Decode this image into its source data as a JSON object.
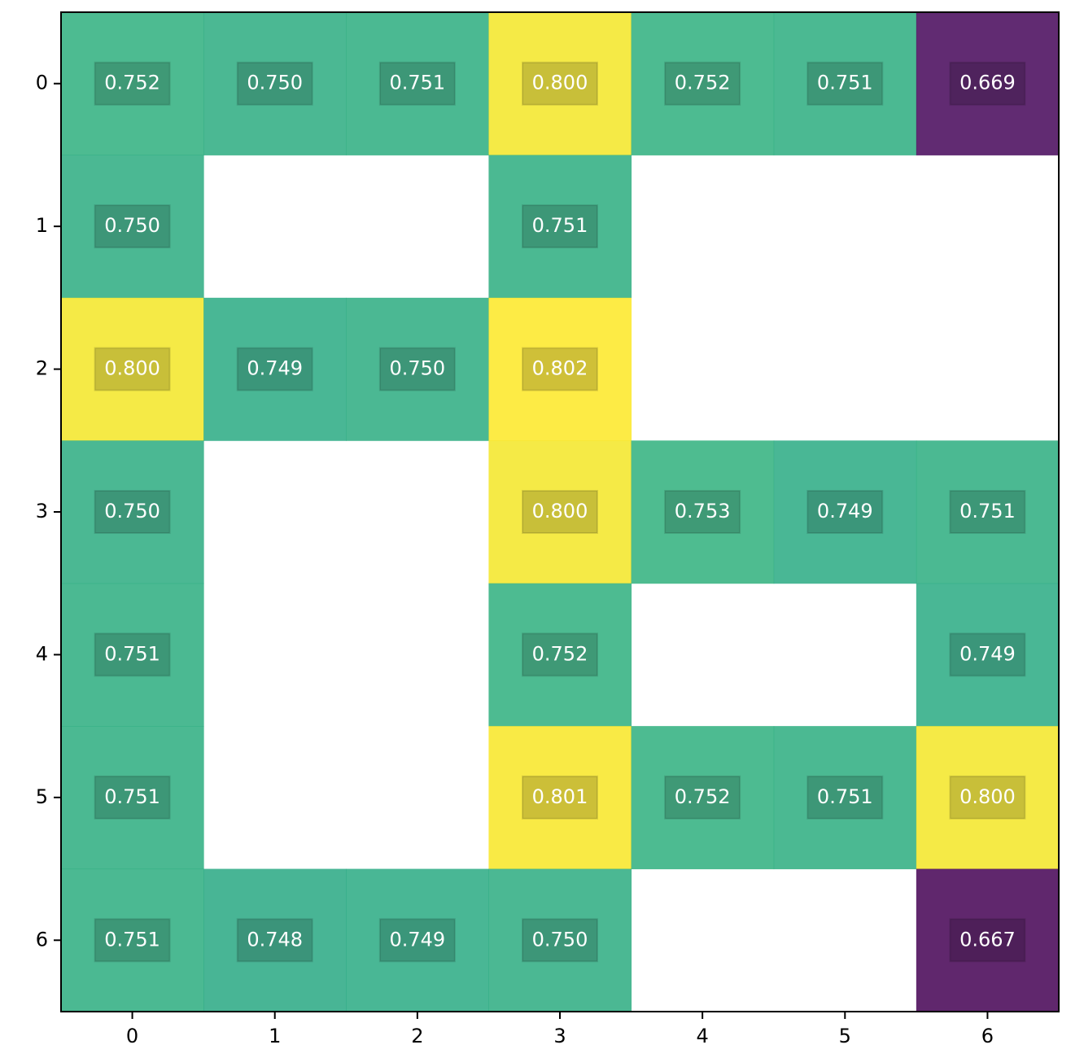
{
  "chart_data": {
    "type": "heatmap",
    "x": [
      0,
      1,
      2,
      3,
      4,
      5,
      6
    ],
    "y": [
      0,
      1,
      2,
      3,
      4,
      5,
      6
    ],
    "xlim": [
      -0.5,
      6.5
    ],
    "ylim": [
      6.5,
      -0.5
    ],
    "xticks": [
      0,
      1,
      2,
      3,
      4,
      5,
      6
    ],
    "yticks": [
      0,
      1,
      2,
      3,
      4,
      5,
      6
    ],
    "colormap": "viridis",
    "values": [
      [
        0.752,
        0.75,
        0.751,
        0.8,
        0.752,
        0.751,
        0.669
      ],
      [
        0.75,
        null,
        null,
        0.751,
        null,
        null,
        null
      ],
      [
        0.8,
        0.749,
        0.75,
        0.802,
        null,
        null,
        null
      ],
      [
        0.75,
        null,
        null,
        0.8,
        0.753,
        0.749,
        0.751
      ],
      [
        0.751,
        null,
        null,
        0.752,
        null,
        null,
        0.749
      ],
      [
        0.751,
        null,
        null,
        0.801,
        0.752,
        0.751,
        0.8
      ],
      [
        0.751,
        0.748,
        0.749,
        0.75,
        null,
        null,
        0.667
      ]
    ],
    "value_labels": [
      [
        "0.752",
        "0.750",
        "0.751",
        "0.800",
        "0.752",
        "0.751",
        "0.669"
      ],
      [
        "0.750",
        null,
        null,
        "0.751",
        null,
        null,
        null
      ],
      [
        "0.800",
        "0.749",
        "0.750",
        "0.802",
        null,
        null,
        null
      ],
      [
        "0.750",
        null,
        null,
        "0.800",
        "0.753",
        "0.749",
        "0.751"
      ],
      [
        "0.751",
        null,
        null,
        "0.752",
        null,
        null,
        "0.749"
      ],
      [
        "0.751",
        null,
        null,
        "0.801",
        "0.752",
        "0.751",
        "0.800"
      ],
      [
        "0.751",
        "0.748",
        "0.749",
        "0.750",
        null,
        null,
        "0.667"
      ]
    ]
  }
}
